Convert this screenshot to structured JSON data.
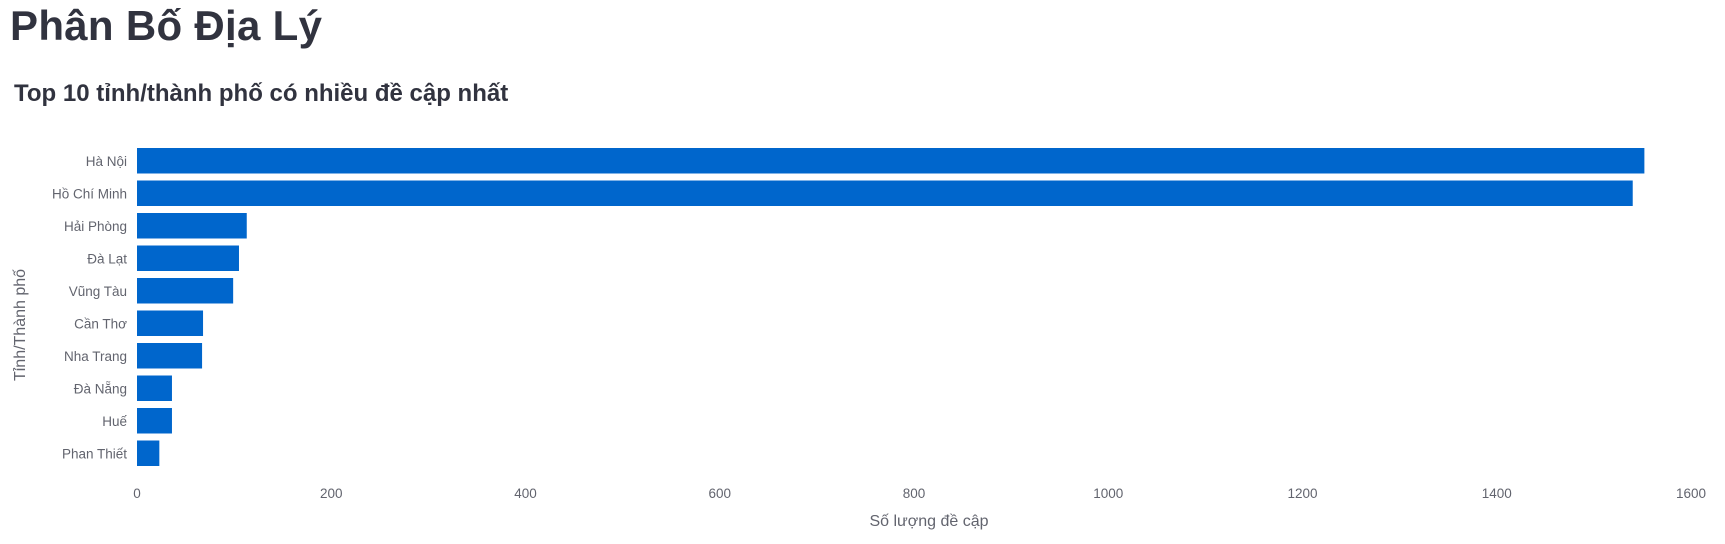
{
  "page": {
    "title": "Phân Bố Địa Lý"
  },
  "chart_data": {
    "type": "bar",
    "orientation": "horizontal",
    "title": "Top 10 tỉnh/thành phố có nhiều đề cập nhất",
    "xlabel": "Số lượng đề cập",
    "ylabel": "Tỉnh/Thành phố",
    "categories": [
      "Hà Nội",
      "Hồ Chí Minh",
      "Hải Phòng",
      "Đà Lạt",
      "Vũng Tàu",
      "Cần Thơ",
      "Nha Trang",
      "Đà Nẵng",
      "Huế",
      "Phan Thiết"
    ],
    "values": [
      1552,
      1540,
      113,
      105,
      99,
      68,
      67,
      36,
      36,
      23
    ],
    "xlim": [
      0,
      1600
    ],
    "xticks": [
      0,
      200,
      400,
      600,
      800,
      1000,
      1200,
      1400,
      1600
    ],
    "bar_color": "#0066cc",
    "grid": false,
    "legend": "none"
  }
}
